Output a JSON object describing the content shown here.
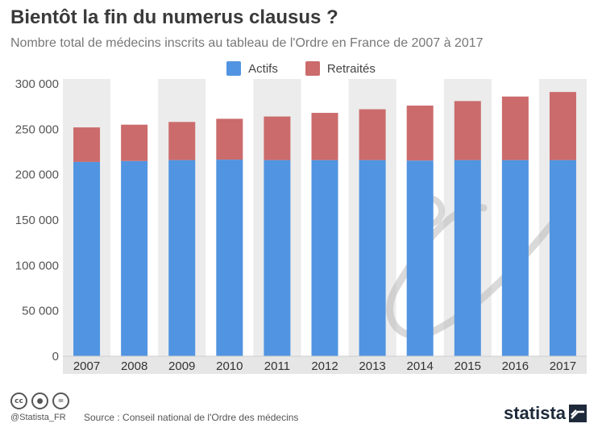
{
  "header": {
    "title": "Bientôt la fin du numerus clausus ?",
    "subtitle": "Nombre total de médecins inscrits au tableau de l'Ordre en France de 2007 à 2017"
  },
  "colors": {
    "actifs": "#5194e1",
    "retraites": "#cb6b6c",
    "band": "#ececec",
    "axis_text": "#555555"
  },
  "chart_data": {
    "type": "bar",
    "stacked": true,
    "title": "Bientôt la fin du numerus clausus ?",
    "subtitle": "Nombre total de médecins inscrits au tableau de l'Ordre en France de 2007 à 2017",
    "xlabel": "",
    "ylabel": "",
    "categories": [
      "2007",
      "2008",
      "2009",
      "2010",
      "2011",
      "2012",
      "2013",
      "2014",
      "2015",
      "2016",
      "2017"
    ],
    "series": [
      {
        "name": "Actifs",
        "values": [
          214000,
          215000,
          216000,
          216500,
          216000,
          216000,
          216000,
          215500,
          216000,
          216000,
          216000
        ]
      },
      {
        "name": "Retraités",
        "values": [
          38000,
          40000,
          42000,
          45000,
          48000,
          52000,
          56000,
          60500,
          65000,
          70000,
          75000
        ]
      }
    ],
    "ylim": [
      0,
      300000
    ],
    "yticks": [
      0,
      50000,
      100000,
      150000,
      200000,
      250000,
      300000
    ],
    "ytick_labels": [
      "0",
      "50 000",
      "100 000",
      "150 000",
      "200 000",
      "250 000",
      "300 000"
    ],
    "legend_position": "top-center",
    "grid": false,
    "alternating_bands": true
  },
  "footer": {
    "icons": [
      "cc-icon",
      "by-icon",
      "nd-icon"
    ],
    "handle": "@Statista_FR",
    "source": "Source : Conseil national de l'Ordre des médecins",
    "brand": "statista"
  }
}
